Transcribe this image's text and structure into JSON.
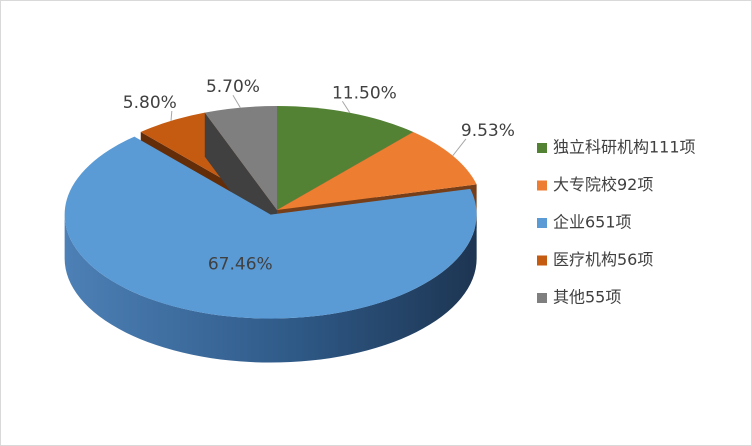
{
  "chart_data": {
    "type": "pie3d",
    "categories": [
      "独立科研机构111项",
      "大专院校92项",
      "企业651项",
      "医疗机构56项",
      "其他55项"
    ],
    "values": [
      11.5,
      9.53,
      67.46,
      5.8,
      5.7
    ],
    "value_labels": [
      "11.50%",
      "9.53%",
      "67.46%",
      "5.80%",
      "5.70%"
    ],
    "colors": [
      "#548235",
      "#ed7d31",
      "#5b9bd5",
      "#c55a11",
      "#7f7f7f"
    ],
    "legend": "right"
  }
}
